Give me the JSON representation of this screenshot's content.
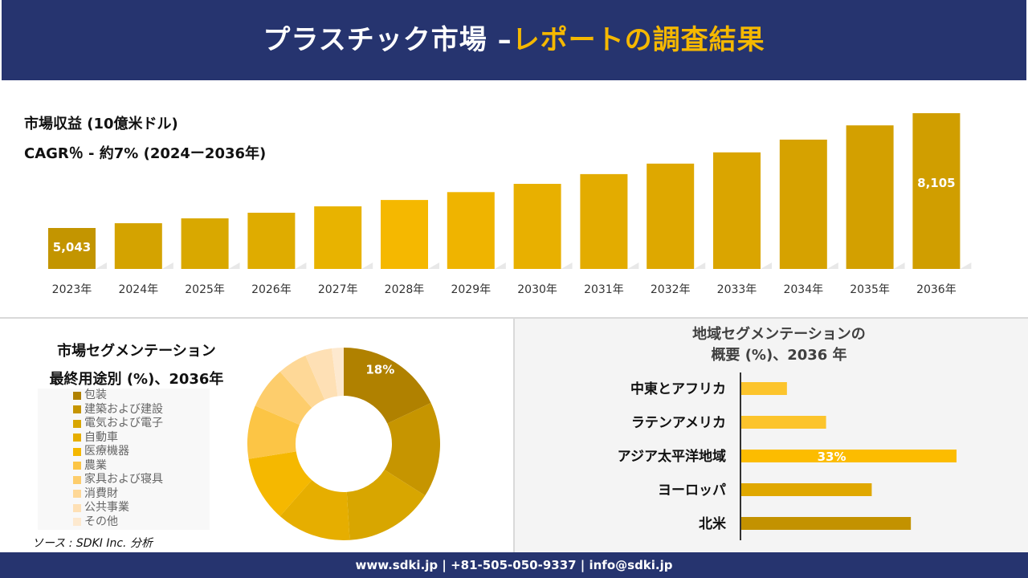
{
  "header": {
    "title_main": "プラスチック市場 –",
    "title_accent": "レポートの調査結果"
  },
  "revenue": {
    "title": "市場収益 (10億米ドル)",
    "cagr": "CAGR％ - 約7% (2024ー2036年)"
  },
  "segment": {
    "title_line1": "市場セグメンテーション",
    "title_line2": "最終用途別 (%)、2036年",
    "source": "ソース : SDKI Inc. 分析"
  },
  "region": {
    "title_line1": "地域セグメンテーションの",
    "title_line2": "概要 (%)、2036 年"
  },
  "footer": {
    "contact": "www.sdki.jp | +81-505-050-9337 | info@sdki.jp"
  },
  "colors": {
    "navy": "#26346f",
    "accent": "#f5b800"
  },
  "chart_data": [
    {
      "type": "bar",
      "title": "市場収益 (10億米ドル)",
      "categories": [
        "2023年",
        "2024年",
        "2025年",
        "2026年",
        "2027年",
        "2028年",
        "2029年",
        "2030年",
        "2031年",
        "2032年",
        "2033年",
        "2034年",
        "2035年",
        "2036年"
      ],
      "values": [
        5043,
        5170,
        5300,
        5450,
        5620,
        5790,
        6000,
        6220,
        6480,
        6760,
        7060,
        7400,
        7780,
        8105
      ],
      "data_labels": {
        "0": "5,043",
        "13": "8,105"
      },
      "colors": [
        "#c39500",
        "#d4a300",
        "#d9a800",
        "#dfac00",
        "#e8b300",
        "#f5b800",
        "#efb400",
        "#e8b000",
        "#e3ac00",
        "#dea800",
        "#daa500",
        "#d6a200",
        "#d3a000",
        "#d09e00"
      ]
    },
    {
      "type": "pie",
      "donut": true,
      "categories": [
        "包装",
        "建築および建設",
        "電気および電子",
        "自動車",
        "医療機器",
        "農業",
        "家具および寝具",
        "消費財",
        "公共事業",
        "その他"
      ],
      "values": [
        18,
        16,
        15,
        12.5,
        11,
        9,
        7,
        5,
        4.5,
        2
      ],
      "data_labels": {
        "0": "18%"
      },
      "colors": [
        "#b08100",
        "#c69500",
        "#d8a600",
        "#e6ae00",
        "#f5b800",
        "#fcc545",
        "#fdcd6c",
        "#fed897",
        "#fee0b5",
        "#fde9cf"
      ],
      "legend": "left"
    },
    {
      "type": "bar",
      "orientation": "horizontal",
      "categories": [
        "中東とアフリカ",
        "ラテンアメリカ",
        "アジア太平洋地域",
        "ヨーロッパ",
        "北米"
      ],
      "values": [
        7,
        13,
        33,
        20,
        26
      ],
      "data_labels": {
        "2": "33%"
      },
      "colors": [
        "#fcc42c",
        "#fcc42c",
        "#fcbc00",
        "#e0a800",
        "#c39200"
      ]
    }
  ]
}
